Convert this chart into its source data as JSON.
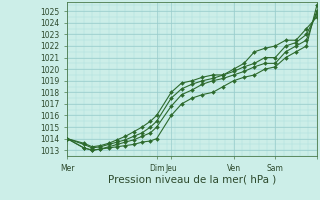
{
  "xlabel": "Pression niveau de la mer( hPa )",
  "background_color": "#cceee8",
  "grid_major_color": "#99cccc",
  "grid_minor_color": "#aadddd",
  "line_color": "#2d6a2d",
  "ylim": [
    1012.5,
    1025.8
  ],
  "xlim": [
    0,
    6.0
  ],
  "yticks": [
    1013,
    1014,
    1015,
    1016,
    1017,
    1018,
    1019,
    1020,
    1021,
    1022,
    1023,
    1024,
    1025
  ],
  "vline_major": [
    0.0,
    2.15,
    2.5,
    4.0,
    5.0,
    6.0
  ],
  "xtick_positions": [
    0.0,
    2.15,
    2.5,
    4.0,
    5.0,
    6.0
  ],
  "xtick_labels": [
    "Mer",
    "Dim",
    "Jeu",
    "Ven",
    "Sam",
    ""
  ],
  "series": [
    {
      "x": [
        0.0,
        0.4,
        0.6,
        0.8,
        1.0,
        1.2,
        1.4,
        1.6,
        1.8,
        2.0,
        2.15,
        2.5,
        2.75,
        3.0,
        3.25,
        3.5,
        3.75,
        4.0,
        4.25,
        4.5,
        4.75,
        5.0,
        5.25,
        5.5,
        5.75,
        6.0
      ],
      "y": [
        1014.0,
        1013.2,
        1013.0,
        1013.1,
        1013.2,
        1013.3,
        1013.4,
        1013.5,
        1013.7,
        1013.8,
        1014.0,
        1016.0,
        1017.0,
        1017.5,
        1017.8,
        1018.0,
        1018.5,
        1019.0,
        1019.3,
        1019.5,
        1020.0,
        1020.2,
        1021.0,
        1021.5,
        1022.0,
        1025.5
      ]
    },
    {
      "x": [
        0.0,
        0.4,
        0.6,
        0.8,
        1.0,
        1.2,
        1.4,
        1.6,
        1.8,
        2.0,
        2.15,
        2.5,
        2.75,
        3.0,
        3.25,
        3.5,
        3.75,
        4.0,
        4.25,
        4.5,
        4.75,
        5.0,
        5.25,
        5.5,
        5.75,
        6.0
      ],
      "y": [
        1014.0,
        1013.2,
        1013.0,
        1013.1,
        1013.3,
        1013.5,
        1013.7,
        1013.9,
        1014.2,
        1014.5,
        1015.0,
        1016.8,
        1017.8,
        1018.2,
        1018.7,
        1019.0,
        1019.2,
        1019.5,
        1019.8,
        1020.2,
        1020.5,
        1020.5,
        1021.5,
        1022.0,
        1022.5,
        1025.0
      ]
    },
    {
      "x": [
        0.0,
        0.4,
        0.6,
        0.8,
        1.0,
        1.2,
        1.4,
        1.6,
        1.8,
        2.0,
        2.15,
        2.5,
        2.75,
        3.0,
        3.25,
        3.5,
        3.75,
        4.0,
        4.25,
        4.5,
        4.75,
        5.0,
        5.25,
        5.5,
        5.75,
        6.0
      ],
      "y": [
        1014.0,
        1013.5,
        1013.2,
        1013.3,
        1013.5,
        1013.7,
        1013.9,
        1014.2,
        1014.5,
        1015.0,
        1015.5,
        1017.5,
        1018.3,
        1018.7,
        1019.0,
        1019.2,
        1019.5,
        1019.8,
        1020.2,
        1020.5,
        1021.0,
        1021.0,
        1022.0,
        1022.3,
        1023.0,
        1024.8
      ]
    },
    {
      "x": [
        0.0,
        0.4,
        0.6,
        0.8,
        1.0,
        1.2,
        1.4,
        1.6,
        1.8,
        2.0,
        2.15,
        2.5,
        2.75,
        3.0,
        3.25,
        3.5,
        3.75,
        4.0,
        4.25,
        4.5,
        4.75,
        5.0,
        5.25,
        5.5,
        5.75,
        6.0
      ],
      "y": [
        1014.0,
        1013.6,
        1013.3,
        1013.4,
        1013.6,
        1013.9,
        1014.2,
        1014.6,
        1015.0,
        1015.5,
        1016.0,
        1018.0,
        1018.8,
        1019.0,
        1019.3,
        1019.5,
        1019.5,
        1020.0,
        1020.5,
        1021.5,
        1021.8,
        1022.0,
        1022.5,
        1022.5,
        1023.5,
        1024.5
      ]
    }
  ],
  "xlabel_fontsize": 7.5,
  "ytick_fontsize": 5.5,
  "xtick_fontsize": 5.5,
  "marker": "D",
  "markersize": 2.0,
  "linewidth": 0.8
}
